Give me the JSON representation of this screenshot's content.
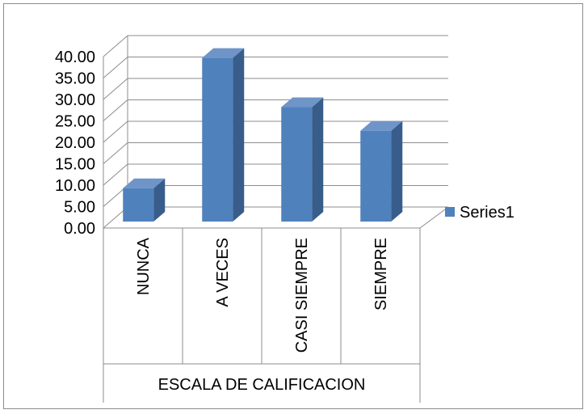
{
  "chart_data": {
    "type": "bar",
    "style": "3d-column",
    "categories": [
      "NUNCA",
      "A VECES",
      "CASI SIEMPRE",
      "SIEMPRE"
    ],
    "series": [
      {
        "name": "Series1",
        "values": [
          9.3,
          39.7,
          28.2,
          22.7
        ]
      }
    ],
    "ylim": [
      0,
      40
    ],
    "yticks": [
      "0.00",
      "5.00",
      "10.00",
      "15.00",
      "20.00",
      "25.00",
      "30.00",
      "35.00",
      "40.00"
    ],
    "xlabel": "ESCALA DE CALIFICACION",
    "grid": true,
    "legend_position": "right",
    "colors": {
      "bar_front": "#4f81bd",
      "bar_side": "#385d8a",
      "bar_top": "#6f94c8",
      "grid": "#8c8c8c"
    }
  }
}
